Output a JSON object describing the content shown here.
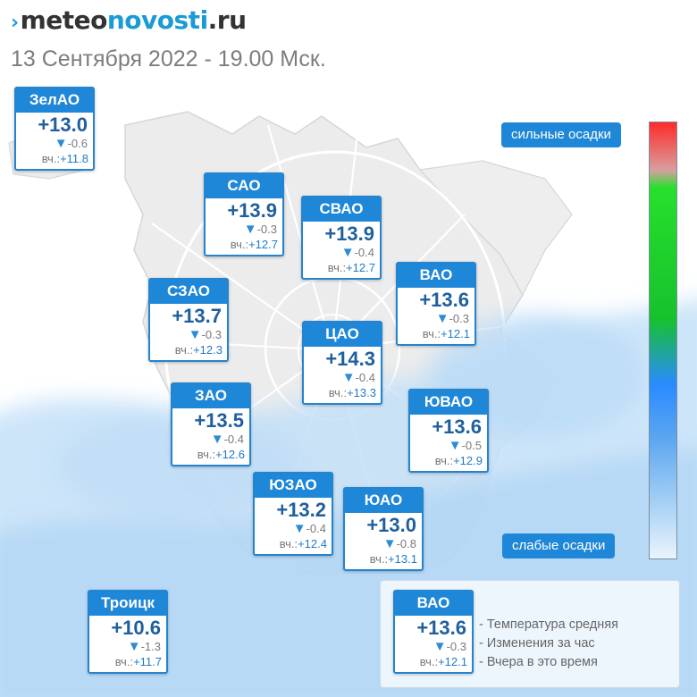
{
  "header": {
    "logo": {
      "mark": "›",
      "part1": "meteo",
      "part2": "novosti",
      "part3": ".ru"
    },
    "subtitle": "13 Сентября 2022 - 19.00 Мск."
  },
  "districts": [
    {
      "name": "ЗелАО",
      "temp": "+13.0",
      "change": "-0.6",
      "yesterday_label": "вч.:",
      "yesterday": "+11.8"
    },
    {
      "name": "САО",
      "temp": "+13.9",
      "change": "-0.3",
      "yesterday_label": "вч.:",
      "yesterday": "+12.7"
    },
    {
      "name": "СВАО",
      "temp": "+13.9",
      "change": "-0.4",
      "yesterday_label": "вч.:",
      "yesterday": "+12.7"
    },
    {
      "name": "ВАО",
      "temp": "+13.6",
      "change": "-0.3",
      "yesterday_label": "вч.:",
      "yesterday": "+12.1"
    },
    {
      "name": "СЗАО",
      "temp": "+13.7",
      "change": "-0.3",
      "yesterday_label": "вч.:",
      "yesterday": "+12.3"
    },
    {
      "name": "ЦАО",
      "temp": "+14.3",
      "change": "-0.4",
      "yesterday_label": "вч.:",
      "yesterday": "+13.3"
    },
    {
      "name": "ЗАО",
      "temp": "+13.5",
      "change": "-0.4",
      "yesterday_label": "вч.:",
      "yesterday": "+12.6"
    },
    {
      "name": "ЮВАО",
      "temp": "+13.6",
      "change": "-0.5",
      "yesterday_label": "вч.:",
      "yesterday": "+12.9"
    },
    {
      "name": "ЮЗАО",
      "temp": "+13.2",
      "change": "-0.4",
      "yesterday_label": "вч.:",
      "yesterday": "+12.4"
    },
    {
      "name": "ЮАО",
      "temp": "+13.0",
      "change": "-0.8",
      "yesterday_label": "вч.:",
      "yesterday": "+13.1"
    },
    {
      "name": "Троицк",
      "temp": "+10.6",
      "change": "-1.3",
      "yesterday_label": "вч.:",
      "yesterday": "+11.7"
    }
  ],
  "scale": {
    "top_label": "сильные осадки",
    "bottom_label": "слабые осадки",
    "colors": [
      "#ff2a2a",
      "#27e02c",
      "#2a8bff",
      "#eaf4fd"
    ]
  },
  "legend": {
    "example": {
      "name": "ВАО",
      "temp": "+13.6",
      "change": "-0.3",
      "yesterday_label": "вч.:",
      "yesterday": "+12.1"
    },
    "lines": [
      "- Температура средняя",
      "- Изменения за час",
      "- Вчера в это время"
    ]
  },
  "icons": {
    "change": "down-triangle-icon"
  },
  "colors": {
    "accent": "#1f87d8",
    "temperature": "#1f5f9e",
    "precip": "#bcdcf6"
  }
}
